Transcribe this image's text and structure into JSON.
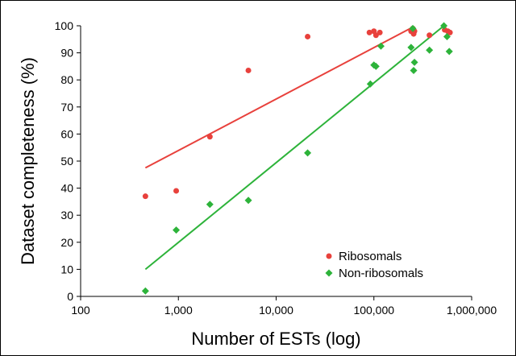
{
  "chart_data": {
    "type": "scatter",
    "xscale": "log",
    "xlim": [
      100,
      1000000
    ],
    "ylim": [
      0,
      100
    ],
    "xticks": [
      100,
      1000,
      10000,
      100000,
      1000000
    ],
    "xtick_labels": [
      "100",
      "1,000",
      "10,000",
      "100,000",
      "1,000,000"
    ],
    "yticks": [
      0,
      10,
      20,
      30,
      40,
      50,
      60,
      70,
      80,
      90,
      100
    ],
    "ytick_labels": [
      "0",
      "10",
      "20",
      "30",
      "40",
      "50",
      "60",
      "70",
      "80",
      "90",
      "100"
    ],
    "xlabel": "Number of ESTs (log)",
    "ylabel": "Dataset completeness (%)",
    "grid": false,
    "legend_position": "bottom-right",
    "series": [
      {
        "name": "Ribosomals",
        "marker": "circle",
        "color": "#e8413c",
        "points": [
          [
            460,
            37
          ],
          [
            950,
            39
          ],
          [
            2100,
            59
          ],
          [
            5200,
            83.5
          ],
          [
            21000,
            96
          ],
          [
            90000,
            97.5
          ],
          [
            100000,
            98
          ],
          [
            105000,
            96.5
          ],
          [
            115000,
            97.5
          ],
          [
            240000,
            98
          ],
          [
            250000,
            99
          ],
          [
            255000,
            97
          ],
          [
            260000,
            98
          ],
          [
            370000,
            96.5
          ],
          [
            530000,
            98.5
          ],
          [
            570000,
            98
          ],
          [
            600000,
            97.5
          ]
        ],
        "trend": [
          [
            460,
            47.5
          ],
          [
            250000,
            99.5
          ]
        ]
      },
      {
        "name": "Non-ribosomals",
        "marker": "diamond",
        "color": "#2db33a",
        "points": [
          [
            460,
            2
          ],
          [
            950,
            24.5
          ],
          [
            2100,
            34
          ],
          [
            5200,
            35.5
          ],
          [
            21000,
            53
          ],
          [
            92000,
            78.5
          ],
          [
            100000,
            85.5
          ],
          [
            105000,
            85
          ],
          [
            118000,
            92.5
          ],
          [
            240000,
            92
          ],
          [
            250000,
            99
          ],
          [
            255000,
            83.5
          ],
          [
            260000,
            86.5
          ],
          [
            370000,
            91
          ],
          [
            520000,
            100
          ],
          [
            560000,
            96
          ],
          [
            590000,
            90.5
          ]
        ],
        "trend": [
          [
            460,
            10
          ],
          [
            520000,
            100
          ]
        ]
      }
    ]
  }
}
